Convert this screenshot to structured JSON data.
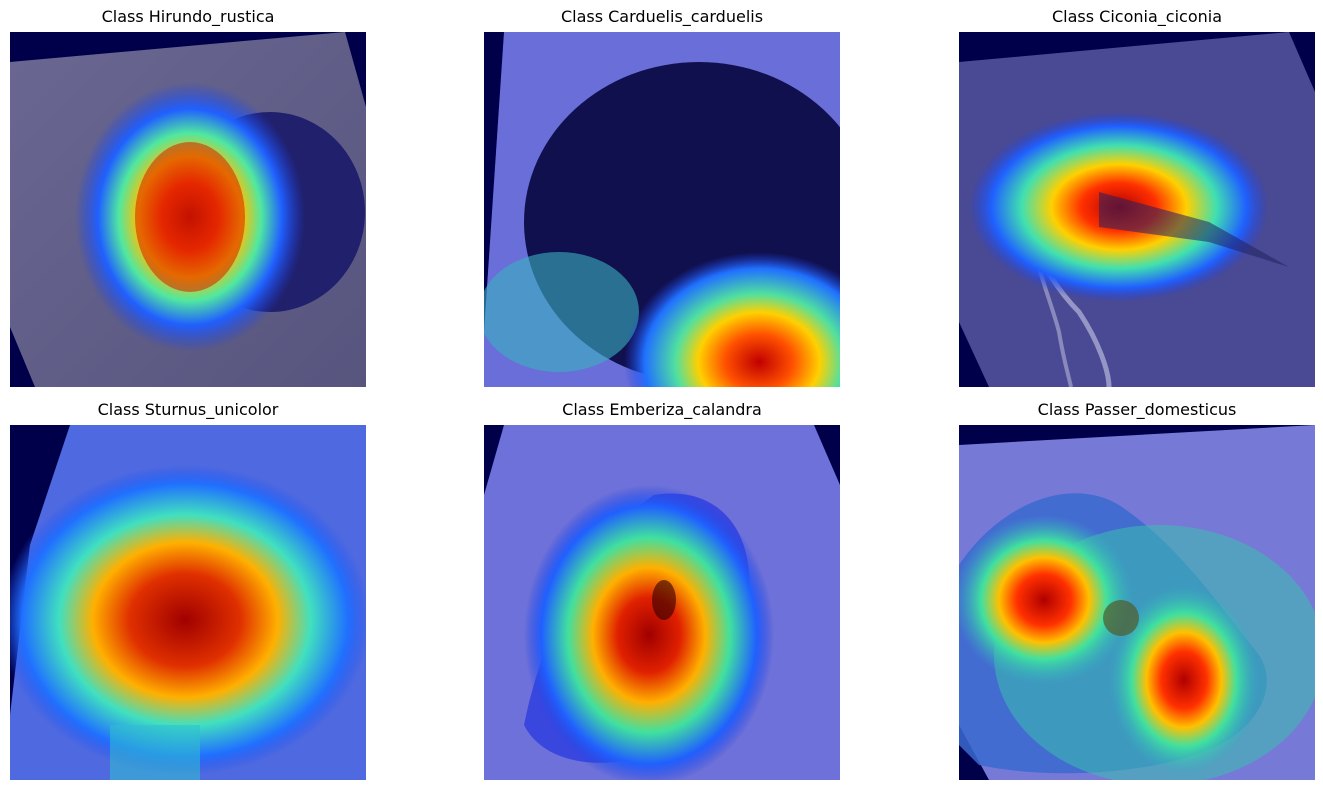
{
  "panels": [
    {
      "title": "Class Hirundo_rustica",
      "image": "gradcam-overlay-swallow"
    },
    {
      "title": "Class Carduelis_carduelis",
      "image": "gradcam-overlay-goldfinch"
    },
    {
      "title": "Class Ciconia_ciconia",
      "image": "gradcam-overlay-stork"
    },
    {
      "title": "Class Sturnus_unicolor",
      "image": "gradcam-overlay-starling"
    },
    {
      "title": "Class Emberiza_calandra",
      "image": "gradcam-overlay-bunting"
    },
    {
      "title": "Class Passer_domesticus",
      "image": "gradcam-overlay-sparrow"
    }
  ],
  "colors": {
    "background": "#ffffff",
    "corner_fill": "#00004a",
    "tint_blue": "#5a5fd6",
    "heat_hot": "#c80000",
    "heat_warm": "#ffb000",
    "heat_mid": "#40e0a0",
    "heat_cool": "#1e50ff"
  }
}
